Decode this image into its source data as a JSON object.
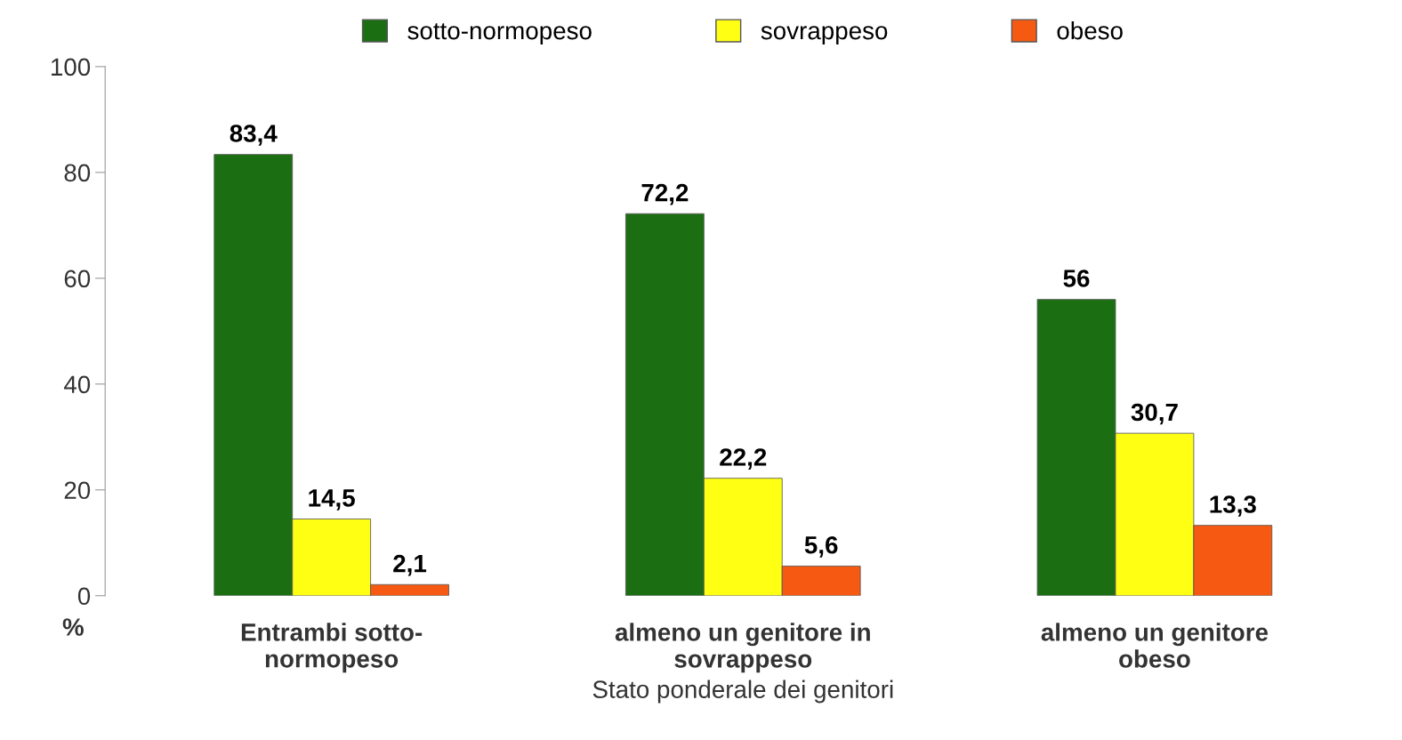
{
  "chart_data": {
    "type": "bar",
    "categories": [
      "Entrambi sotto-\nnormopeso",
      "almeno un genitore in\nsovrappeso",
      "almeno un genitore\nobeso"
    ],
    "series": [
      {
        "name": "sotto-normopeso",
        "color": "#1b6f12",
        "values": [
          83.4,
          72.2,
          56
        ],
        "value_labels": [
          "83,4",
          "72,2",
          "56"
        ]
      },
      {
        "name": "sovrappeso",
        "color": "#ffff14",
        "values": [
          14.5,
          22.2,
          30.7
        ],
        "value_labels": [
          "14,5",
          "22,2",
          "30,7"
        ]
      },
      {
        "name": "obeso",
        "color": "#f65a12",
        "values": [
          2.1,
          5.6,
          13.3
        ],
        "value_labels": [
          "2,1",
          "5,6",
          "13,3"
        ]
      }
    ],
    "xlabel": "Stato ponderale dei genitori",
    "ylabel": "%",
    "ylim": [
      0,
      100
    ],
    "yticks": [
      0,
      20,
      40,
      60,
      80,
      100
    ],
    "grid": false,
    "legend": "top"
  }
}
